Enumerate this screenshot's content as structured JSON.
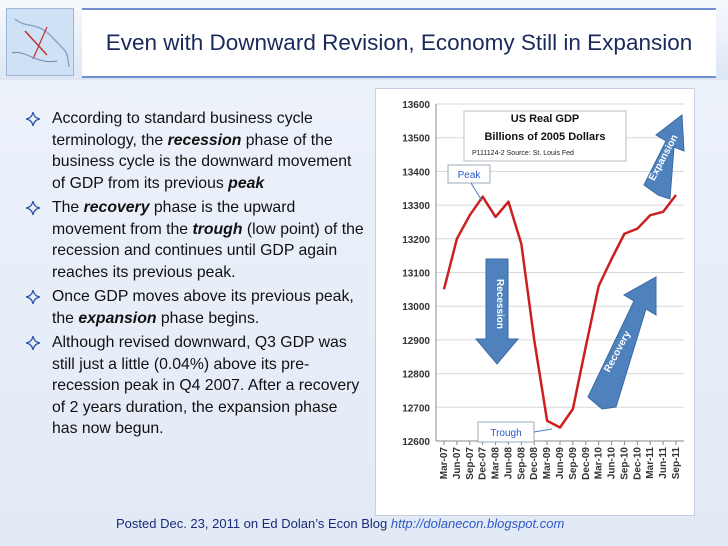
{
  "slide": {
    "title": "Even with Downward Revision, Economy Still in Expansion",
    "bullets": [
      {
        "parts": [
          [
            "According to standard business cycle terminology, the ",
            false
          ],
          [
            "recession",
            true
          ],
          [
            " phase of the business cycle is the downward movement of GDP from its previous ",
            false
          ],
          [
            "peak",
            true
          ]
        ]
      },
      {
        "parts": [
          [
            "The ",
            false
          ],
          [
            "recovery",
            true
          ],
          [
            " phase is the upward movement from the ",
            false
          ],
          [
            "trough",
            true
          ],
          [
            " (low point) of the recession and continues until GDP again reaches its previous peak.",
            false
          ]
        ]
      },
      {
        "parts": [
          [
            "Once GDP moves above its previous peak, the ",
            false
          ],
          [
            "expansion",
            true
          ],
          [
            " phase begins.",
            false
          ]
        ]
      },
      {
        "parts": [
          [
            "Although revised downward, Q3 GDP was still just a little (0.04%) above its pre-recession peak in Q4 2007. After a recovery of 2 years duration, the expansion phase has now begun.",
            false
          ]
        ]
      }
    ],
    "footer_text": "Posted Dec. 23, 2011 on Ed Dolan’s Econ Blog ",
    "footer_url": "http://dolanecon.blogspot.com"
  },
  "chart_data": {
    "type": "line",
    "title": "US Real GDP",
    "subtitle": "Billions of 2005  Dollars",
    "source": "P111124-2 Source: St. Louis Fed",
    "categories": [
      "Mar-07",
      "Jun-07",
      "Sep-07",
      "Dec-07",
      "Mar-08",
      "Jun-08",
      "Sep-08",
      "Dec-08",
      "Mar-09",
      "Jun-09",
      "Sep-09",
      "Dec-09",
      "Mar-10",
      "Jun-10",
      "Sep-10",
      "Dec-10",
      "Mar-11",
      "Jun-11",
      "Sep-11"
    ],
    "series": [
      {
        "values": [
          13050,
          13200,
          13270,
          13325,
          13265,
          13310,
          13185,
          12900,
          12660,
          12640,
          12695,
          12880,
          13060,
          13140,
          13215,
          13230,
          13270,
          13280,
          13330
        ]
      }
    ],
    "yticks": [
      12600,
      12700,
      12800,
      12900,
      13000,
      13100,
      13200,
      13300,
      13400,
      13500,
      13600
    ],
    "ylim": [
      12600,
      13600
    ],
    "grid": true,
    "line_color": "#cc1f1f",
    "annotations": {
      "peak": "Peak",
      "trough": "Trough",
      "recession": "Recession",
      "recovery": "Recovery",
      "expansion": "Expansion"
    },
    "arrow_color": "#4f81bd"
  }
}
